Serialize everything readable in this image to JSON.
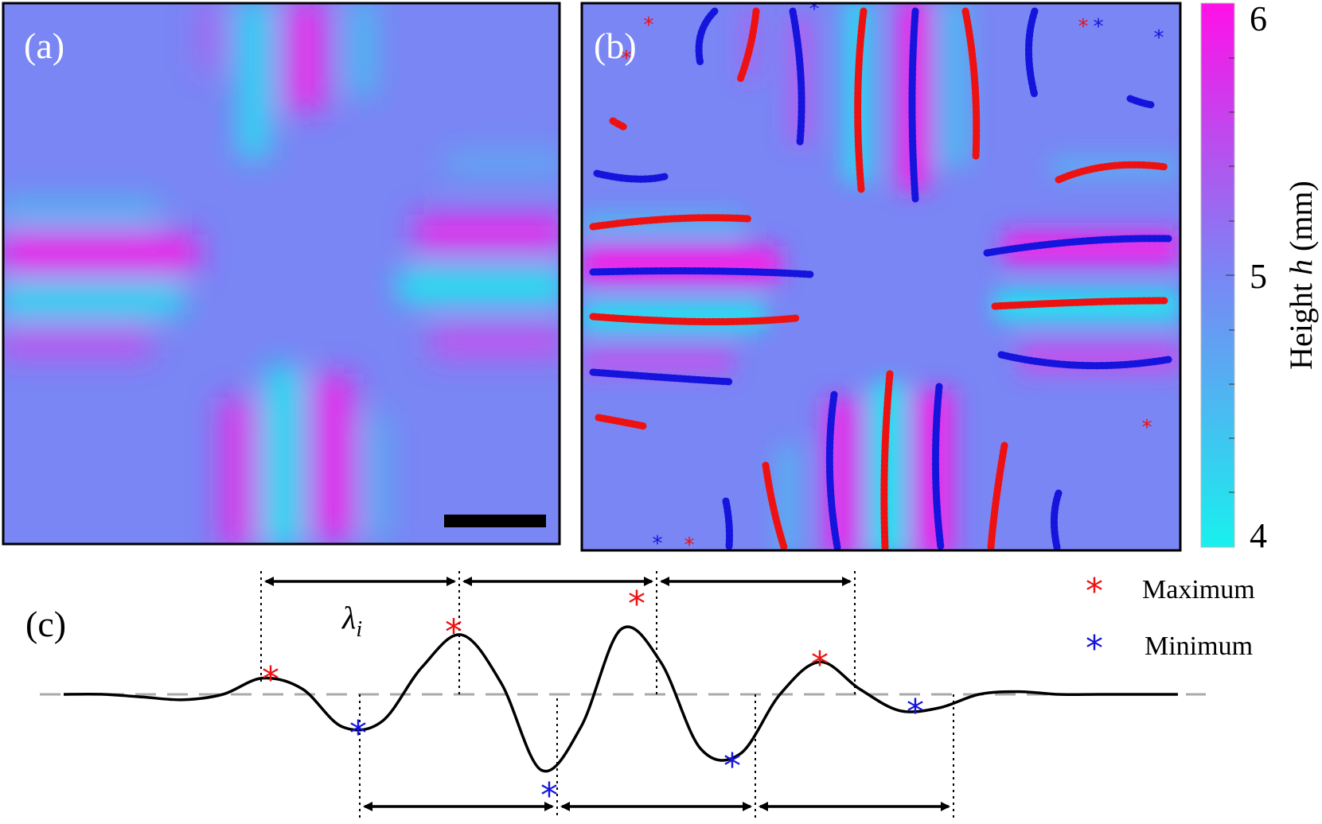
{
  "figure": {
    "panel_a_label": "(a)",
    "panel_b_label": "(b)",
    "panel_c_label": "(c)",
    "colorbar": {
      "title_prefix": "Height ",
      "title_var": "h",
      "title_unit": " (mm)",
      "min": 4,
      "max": 6,
      "tick_labels": [
        "4",
        "5",
        "6"
      ],
      "color_low": "#18f0ee",
      "color_mid": "#7a86f4",
      "color_high": "#ff10e8"
    },
    "legend": {
      "maximum_label": "Maximum",
      "minimum_label": "Minimum",
      "maximum_color": "#ee1111",
      "minimum_color": "#1414dd"
    },
    "lambda_label": "λ",
    "lambda_subscript": "i"
  },
  "chart_data": {
    "type": "line",
    "title": "",
    "xlabel": "",
    "ylabel": "",
    "x": [
      0,
      0.5,
      1,
      1.5,
      2,
      2.5,
      3,
      3.5,
      4,
      4.5,
      5,
      5.5,
      6,
      6.5,
      7,
      7.5,
      8,
      8.5,
      9,
      9.5,
      10,
      10.5,
      11,
      11.5,
      12,
      12.5,
      13,
      13.5,
      14
    ],
    "values": [
      0,
      0,
      -0.05,
      -0.1,
      0,
      0.3,
      0.1,
      -0.6,
      -0.5,
      0.5,
      1.1,
      0.2,
      -1.4,
      -0.6,
      1.2,
      0.6,
      -1.0,
      -1.1,
      0.0,
      0.6,
      0.1,
      -0.3,
      -0.25,
      0.0,
      0.05,
      0.0,
      0.0,
      0.0,
      0.0
    ],
    "baseline": 0,
    "maxima": [
      [
        2.6,
        0.32
      ],
      [
        4.9,
        1.2
      ],
      [
        7.2,
        1.72
      ],
      [
        9.5,
        0.6
      ]
    ],
    "minima": [
      [
        3.7,
        -0.68
      ],
      [
        6.1,
        -1.82
      ],
      [
        8.4,
        -1.28
      ],
      [
        10.7,
        -0.28
      ]
    ],
    "wavelength_arrows": "between consecutive maxima (top) and consecutive minima (bottom)"
  }
}
